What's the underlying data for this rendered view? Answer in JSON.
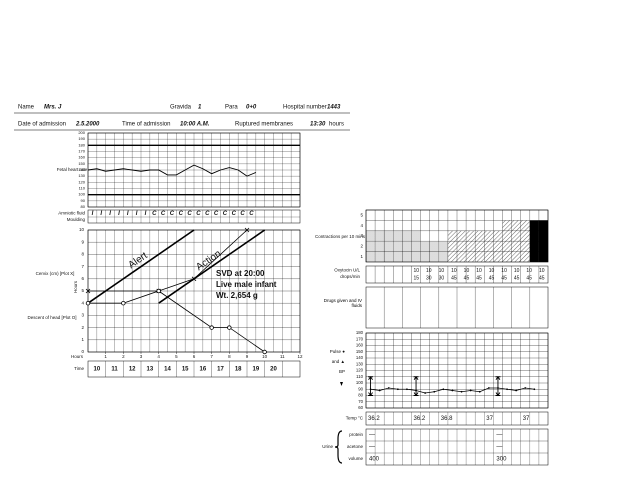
{
  "header": {
    "name_label": "Name",
    "name": "Mrs. J",
    "gravida_label": "Gravida",
    "gravida": "1",
    "para_label": "Para",
    "para": "0+0",
    "hospital_number_label": "Hospital number",
    "hospital_number": "1443",
    "admission_date_label": "Date of admission",
    "admission_date": "2.5.2000",
    "admission_time_label": "Time of admission",
    "admission_time": "10:00 A.M.",
    "ruptured_membranes_label": "Ruptured membranes",
    "ruptured_membranes": "13:30",
    "ruptured_membranes_unit": "hours"
  },
  "liquor": {
    "amniotic_label": "Amniotic fluid",
    "moulding_label": "Moulding",
    "amniotic_fluid": [
      "I",
      "I",
      "I",
      "I",
      "I",
      "I",
      "I",
      "C",
      "C",
      "C",
      "C",
      "C",
      "C",
      "C",
      "C",
      "C",
      "C",
      "C",
      "C"
    ]
  },
  "chart_data": [
    {
      "type": "line",
      "ylabel": "Fetal heart rate",
      "color": "#000",
      "x": [
        0,
        0.5,
        1,
        1.5,
        2,
        2.5,
        3,
        3.5,
        4,
        4.5,
        5,
        5.5,
        6,
        6.5,
        7,
        7.5,
        8,
        8.5,
        9,
        9.5
      ],
      "values": [
        140,
        142,
        138,
        140,
        142,
        140,
        138,
        140,
        140,
        132,
        132,
        140,
        148,
        142,
        134,
        140,
        144,
        140,
        130,
        136
      ],
      "xlim": [
        0,
        12
      ],
      "ylim": [
        80,
        200
      ],
      "yticks": [
        80,
        90,
        100,
        110,
        120,
        130,
        140,
        150,
        160,
        170,
        180,
        190,
        200
      ],
      "bold_lines": [
        100,
        180
      ]
    },
    {
      "type": "cervicograph",
      "xlabel": "Hours",
      "xlim": [
        0,
        12
      ],
      "xticks": [
        1,
        2,
        3,
        4,
        5,
        6,
        7,
        8,
        9,
        10,
        11,
        12
      ],
      "ylim": [
        0,
        10
      ],
      "yticks": [
        0,
        1,
        2,
        3,
        4,
        5,
        6,
        7,
        8,
        9,
        10
      ],
      "series": [
        {
          "name": "Cervix (cm) [Plot X]",
          "marker": "x",
          "color": "#000",
          "x": [
            0,
            4,
            6,
            9
          ],
          "values": [
            5,
            5,
            6,
            10
          ]
        },
        {
          "name": "Descent of head [Plot O]",
          "marker": "o",
          "color": "#000",
          "x": [
            0,
            2,
            4,
            7,
            8,
            10
          ],
          "values": [
            4,
            4,
            5,
            2,
            2,
            0
          ]
        }
      ],
      "alert_line": {
        "label": "Alert",
        "x": [
          0,
          6
        ],
        "values": [
          4,
          10
        ]
      },
      "action_line": {
        "label": "Action",
        "x": [
          4,
          10
        ],
        "values": [
          4,
          10
        ]
      },
      "time_label": "Time",
      "times": [
        "10",
        "11",
        "12",
        "13",
        "14",
        "15",
        "16",
        "17",
        "18",
        "19",
        "20"
      ],
      "annotations": [
        "SVD at 20:00",
        "Live male infant",
        "Wt. 2,654 g"
      ]
    },
    {
      "type": "bar",
      "ylabel": "Contractions per 10 mins",
      "xlim": [
        0,
        10
      ],
      "ylim": [
        0,
        5
      ],
      "yticks": [
        1,
        2,
        3,
        4,
        5
      ],
      "x": [
        0,
        0.5,
        1,
        1.5,
        2,
        2.5,
        3,
        3.5,
        4,
        4.5,
        5,
        5.5,
        6,
        6.5,
        7,
        7.5,
        8,
        8.5,
        9,
        9.5
      ],
      "values": [
        3,
        3,
        3,
        3,
        3,
        3,
        2,
        2,
        2,
        3,
        3,
        3,
        3,
        3,
        3,
        4,
        4,
        4,
        4,
        4
      ],
      "patterns": [
        "dots",
        "dots",
        "dots",
        "dots",
        "dots",
        "dots",
        "dots",
        "dots",
        "dots",
        "hatch",
        "hatch",
        "hatch",
        "hatch",
        "hatch",
        "hatch",
        "hatch",
        "hatch",
        "hatch",
        "solid",
        "solid"
      ]
    },
    {
      "type": "pulse",
      "labels": [
        "Pulse ●",
        "and ▲",
        "BP"
      ],
      "xlim": [
        0,
        10
      ],
      "ylim": [
        60,
        180
      ],
      "yticks": [
        60,
        70,
        80,
        90,
        100,
        110,
        120,
        130,
        140,
        150,
        160,
        170,
        180
      ],
      "color": "#000",
      "x": [
        0,
        0.5,
        1,
        1.5,
        2,
        2.5,
        3,
        3.5,
        4,
        4.5,
        5,
        5.5,
        6,
        6.5,
        7,
        7.5,
        8,
        8.5,
        9
      ],
      "values": [
        90,
        88,
        92,
        90,
        90,
        88,
        84,
        86,
        90,
        88,
        86,
        88,
        86,
        92,
        92,
        90,
        88,
        92,
        90
      ],
      "bp_x": [
        0,
        2.5,
        7
      ],
      "bp_systolic": [
        110,
        110,
        110
      ],
      "bp_diastolic": [
        80,
        80,
        80
      ]
    }
  ],
  "oxytocin": {
    "units_label": "Oxytocin U/L",
    "drops_label": "drops/min",
    "units": [
      "10",
      "10",
      "10",
      "10",
      "10",
      "10",
      "10",
      "10",
      "10",
      "10",
      "10"
    ],
    "drops": [
      "15",
      "30",
      "30",
      "45",
      "45",
      "45",
      "45",
      "45",
      "45",
      "45",
      "45"
    ]
  },
  "drugs": {
    "label": "Drugs given and IV fluids"
  },
  "temperature": {
    "label": "Temp °C",
    "x": [
      0,
      2.5,
      4,
      6.5,
      8.5
    ],
    "values": [
      "36.2",
      "36.2",
      "36.8",
      "37",
      "37"
    ]
  },
  "urine": {
    "label": "Urine",
    "protein_label": "protein",
    "acetone_label": "acetone",
    "volume_label": "volume",
    "x": [
      0,
      7
    ],
    "protein": [
      "—",
      "—"
    ],
    "acetone": [
      "—",
      "—"
    ],
    "volume": [
      "400",
      "300"
    ]
  }
}
